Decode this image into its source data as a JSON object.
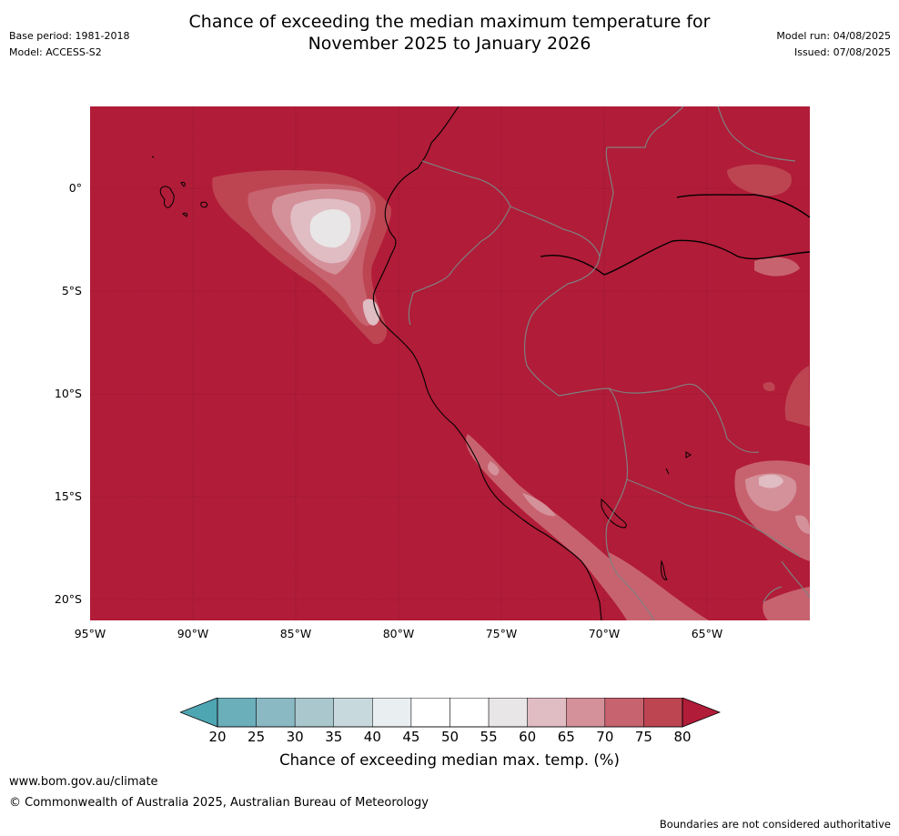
{
  "header": {
    "title_line1": "Chance of exceeding the median maximum temperature for",
    "title_line2": "November 2025 to January 2026",
    "base_period": "Base period: 1981-2018",
    "model": "Model: ACCESS-S2",
    "model_run": "Model run: 04/08/2025",
    "issued": "Issued: 07/08/2025"
  },
  "map": {
    "lat_labels": [
      "0°",
      "5°S",
      "10°S",
      "15°S",
      "20°S"
    ],
    "lon_labels": [
      "95°W",
      "90°W",
      "85°W",
      "80°W",
      "75°W",
      "70°W",
      "65°W"
    ],
    "base_color": "#b11c38",
    "coastline_color": "#000000",
    "border_color": "#808080"
  },
  "colorbar": {
    "ticks": [
      "20",
      "25",
      "30",
      "35",
      "40",
      "45",
      "50",
      "55",
      "60",
      "65",
      "70",
      "75",
      "80"
    ],
    "colors": [
      "#6bafbb",
      "#8ab9c4",
      "#a9c7cd",
      "#c8d9dd",
      "#e9eff1",
      "#ffffff",
      "#ffffff",
      "#e8e6e7",
      "#e0bcc3",
      "#d4919a",
      "#c7636f",
      "#bd4552"
    ],
    "low_extend_color": "#4ea6b3",
    "high_extend_color": "#b11c38",
    "label": "Chance of exceeding median max. temp. (%)"
  },
  "footer": {
    "website": "www.bom.gov.au/climate",
    "copyright": "© Commonwealth of Australia 2025, Australian Bureau of Meteorology",
    "disclaimer": "Boundaries are not considered authoritative"
  }
}
